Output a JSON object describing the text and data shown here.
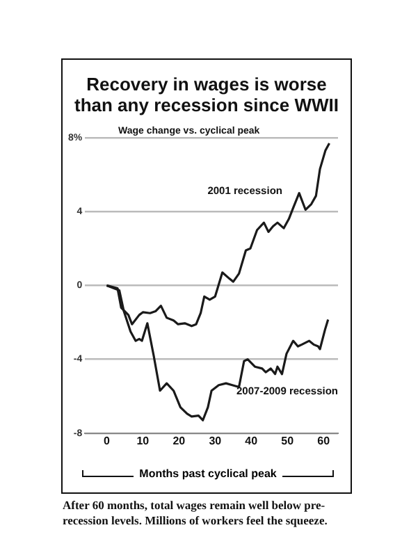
{
  "chart_data": {
    "type": "line",
    "title": "Recovery in wages is worse than any recession since WWII",
    "subtitle": "Wage change vs. cyclical peak",
    "xlabel": "Months past cyclical peak",
    "xlim": [
      -6,
      64
    ],
    "xticks": [
      0,
      10,
      20,
      30,
      40,
      50,
      60
    ],
    "ylim": [
      -8,
      8
    ],
    "yticks": [
      -8,
      -4,
      0,
      4,
      {
        "value": 8,
        "label": "8%"
      }
    ],
    "grid": "y",
    "legend": false,
    "marker": "none",
    "line_style": "solid",
    "series": [
      {
        "name": "2001 recession",
        "color": "#1a1a1a",
        "x": [
          0,
          3,
          4,
          6,
          7,
          9,
          10,
          12,
          13.5,
          15,
          16.6,
          18.5,
          19.75,
          21.6,
          23.5,
          24.75,
          26,
          27,
          28.5,
          30,
          32,
          34,
          35,
          36.6,
          38.5,
          39.75,
          41.6,
          43.5,
          44.75,
          46,
          47.25,
          49,
          50.4,
          51.6,
          53.25,
          55,
          56.6,
          57.9,
          59,
          60.5,
          61.6
        ],
        "values": [
          0,
          -0.16,
          -1.2,
          -1.6,
          -2.1,
          -1.6,
          -1.45,
          -1.5,
          -1.4,
          -1.1,
          -1.75,
          -1.9,
          -2.1,
          -2.05,
          -2.2,
          -2.1,
          -1.5,
          -0.6,
          -0.77,
          -0.6,
          0.7,
          0.36,
          0.2,
          0.64,
          1.9,
          2,
          3,
          3.4,
          2.9,
          3.2,
          3.4,
          3.1,
          3.6,
          4.2,
          5,
          4.1,
          4.4,
          4.85,
          6.3,
          7.3,
          7.7
        ]
      },
      {
        "name": "2007-2009 recession",
        "color": "#1a1a1a",
        "x": [
          0,
          2,
          3.5,
          4.75,
          6.6,
          8,
          9,
          9.75,
          11.25,
          13,
          14.75,
          16.6,
          18.5,
          20.4,
          22.25,
          23.5,
          25.4,
          26.6,
          28,
          29,
          31,
          33,
          34.75,
          36.6,
          38,
          39,
          41,
          43,
          44,
          45.4,
          46.6,
          47.25,
          48.5,
          49.75,
          51.6,
          52.9,
          54,
          56,
          57.25,
          58.5,
          59,
          60.4,
          61.25
        ],
        "values": [
          0,
          -0.15,
          -0.27,
          -1.4,
          -2.5,
          -3,
          -2.9,
          -3,
          -2.05,
          -3.8,
          -5.7,
          -5.3,
          -5.7,
          -6.6,
          -6.95,
          -7.1,
          -7.05,
          -7.3,
          -6.6,
          -5.7,
          -5.4,
          -5.3,
          -5.4,
          -5.5,
          -4.1,
          -4,
          -4.4,
          -4.5,
          -4.7,
          -4.5,
          -4.8,
          -4.4,
          -4.8,
          -3.7,
          -3,
          -3.3,
          -3.2,
          -3,
          -3.2,
          -3.3,
          -3.45,
          -2.4,
          -1.85
        ]
      }
    ],
    "annotations": [
      "After 60 months, total wages remain well below pre-recession levels. Millions of workers feel the squeeze."
    ]
  }
}
